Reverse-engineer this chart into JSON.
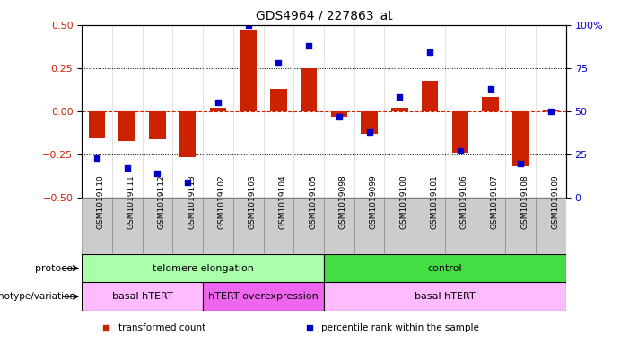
{
  "title": "GDS4964 / 227863_at",
  "samples": [
    "GSM1019110",
    "GSM1019111",
    "GSM1019112",
    "GSM1019113",
    "GSM1019102",
    "GSM1019103",
    "GSM1019104",
    "GSM1019105",
    "GSM1019098",
    "GSM1019099",
    "GSM1019100",
    "GSM1019101",
    "GSM1019106",
    "GSM1019107",
    "GSM1019108",
    "GSM1019109"
  ],
  "bar_values": [
    -0.155,
    -0.175,
    -0.16,
    -0.265,
    0.02,
    0.47,
    0.13,
    0.25,
    -0.03,
    -0.13,
    0.02,
    0.175,
    -0.24,
    0.08,
    -0.32,
    0.01
  ],
  "dot_values": [
    23,
    17,
    14,
    9,
    55,
    100,
    78,
    88,
    47,
    38,
    58,
    84,
    27,
    63,
    20,
    50
  ],
  "ylim_left": [
    -0.5,
    0.5
  ],
  "ylim_right": [
    0,
    100
  ],
  "yticks_left": [
    -0.5,
    -0.25,
    0.0,
    0.25,
    0.5
  ],
  "yticks_right": [
    0,
    25,
    50,
    75,
    100
  ],
  "bar_color": "#cc2200",
  "dot_color": "#0000cc",
  "zero_line_color": "#cc2200",
  "grid_color": "#000000",
  "protocol_groups": [
    {
      "label": "telomere elongation",
      "start": 0,
      "end": 8,
      "color": "#aaffaa"
    },
    {
      "label": "control",
      "start": 8,
      "end": 16,
      "color": "#44dd44"
    }
  ],
  "genotype_groups": [
    {
      "label": "basal hTERT",
      "start": 0,
      "end": 4,
      "color": "#ffbbff"
    },
    {
      "label": "hTERT overexpression",
      "start": 4,
      "end": 8,
      "color": "#ee66ee"
    },
    {
      "label": "basal hTERT",
      "start": 8,
      "end": 16,
      "color": "#ffbbff"
    }
  ],
  "legend_items": [
    {
      "label": "transformed count",
      "color": "#cc2200"
    },
    {
      "label": "percentile rank within the sample",
      "color": "#0000cc"
    }
  ],
  "xtick_bg": "#cccccc",
  "axis_bg": "#ffffff"
}
